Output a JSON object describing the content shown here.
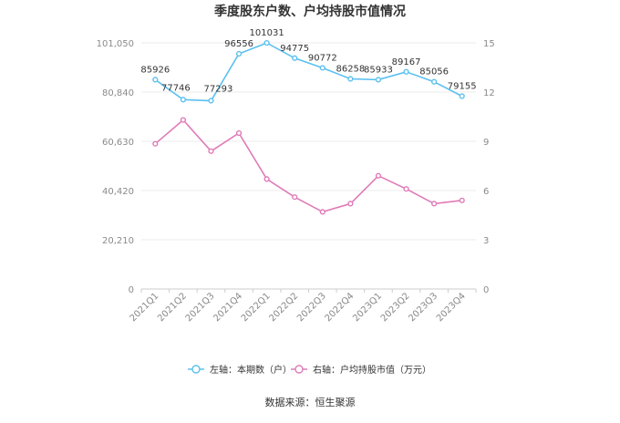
{
  "chart_data": {
    "type": "line",
    "title": "季度股东户数、户均持股市值情况",
    "source": "数据来源：恒生聚源",
    "categories": [
      "2021Q1",
      "2021Q2",
      "2021Q3",
      "2021Q4",
      "2022Q1",
      "2022Q2",
      "2022Q3",
      "2022Q4",
      "2023Q1",
      "2023Q2",
      "2023Q3",
      "2023Q4"
    ],
    "left_axis": {
      "ticks": [
        "0",
        "20,210",
        "40,420",
        "60,630",
        "80,840",
        "101,050"
      ],
      "min": 0,
      "max": 101050
    },
    "right_axis": {
      "ticks": [
        "0",
        "3",
        "6",
        "9",
        "12",
        "15"
      ],
      "min": 0,
      "max": 15
    },
    "series": [
      {
        "name": "左轴：本期数（户）",
        "axis": "left",
        "color": "#5bc0f0",
        "values": [
          85926,
          77746,
          77293,
          96556,
          101031,
          94775,
          90772,
          86258,
          85933,
          89167,
          85056,
          79155
        ],
        "labels": [
          "85926",
          "77746",
          "77293",
          "96556",
          "101031",
          "94775",
          "90772",
          "86258",
          "85933",
          "89167",
          "85056",
          "79155"
        ]
      },
      {
        "name": "右轴：户均持股市值（万元）",
        "axis": "right",
        "color": "#e07ab8",
        "values": [
          8.85,
          10.3,
          8.4,
          9.5,
          6.7,
          5.6,
          4.7,
          5.2,
          6.9,
          6.1,
          5.2,
          5.4
        ]
      }
    ],
    "grid": true,
    "legend": "bottom"
  }
}
